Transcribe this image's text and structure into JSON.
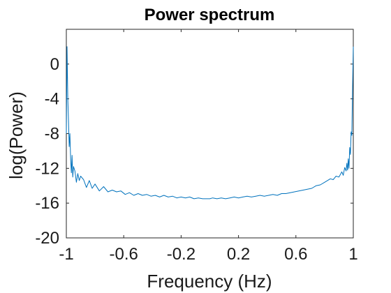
{
  "chart_data": {
    "type": "line",
    "title": "Power spectrum",
    "xlabel": "Frequency (Hz)",
    "ylabel": "log(Power)",
    "xlim": [
      -1,
      1
    ],
    "ylim": [
      -20,
      4
    ],
    "xticks": [
      -1,
      -0.6,
      -0.2,
      0.2,
      0.6,
      1
    ],
    "xtick_labels": [
      "-1",
      "-0.6",
      "-0.2",
      "0.2",
      "0.6",
      "1"
    ],
    "yticks": [
      -20,
      -16,
      -12,
      -8,
      -4,
      0
    ],
    "ytick_labels": [
      "-20",
      "-16",
      "-12",
      "-8",
      "-4",
      "0"
    ],
    "grid": false,
    "line_color": "#0072BD",
    "series": [
      {
        "x": [
          -1.0,
          -0.995,
          -0.99,
          -0.985,
          -0.98,
          -0.975,
          -0.97,
          -0.965,
          -0.96,
          -0.955,
          -0.95,
          -0.94,
          -0.93,
          -0.92,
          -0.91,
          -0.9,
          -0.88,
          -0.86,
          -0.84,
          -0.82,
          -0.8,
          -0.77,
          -0.74,
          -0.71,
          -0.68,
          -0.65,
          -0.62,
          -0.59,
          -0.56,
          -0.53,
          -0.5,
          -0.47,
          -0.44,
          -0.41,
          -0.38,
          -0.35,
          -0.32,
          -0.29,
          -0.26,
          -0.23,
          -0.2,
          -0.17,
          -0.14,
          -0.11,
          -0.08,
          -0.05,
          -0.02,
          0.0,
          0.02,
          0.05,
          0.08,
          0.11,
          0.14,
          0.17,
          0.2,
          0.23,
          0.26,
          0.29,
          0.32,
          0.35,
          0.38,
          0.41,
          0.44,
          0.47,
          0.5,
          0.53,
          0.56,
          0.59,
          0.62,
          0.65,
          0.68,
          0.71,
          0.74,
          0.77,
          0.8,
          0.82,
          0.84,
          0.86,
          0.88,
          0.9,
          0.91,
          0.92,
          0.93,
          0.94,
          0.95,
          0.955,
          0.96,
          0.965,
          0.97,
          0.975,
          0.98,
          0.985,
          0.99,
          0.995,
          1.0
        ],
        "y": [
          -8.0,
          2.0,
          -4.0,
          -6.5,
          -9.5,
          -8.0,
          -11.0,
          -12.5,
          -10.5,
          -13.0,
          -11.8,
          -12.3,
          -13.6,
          -12.6,
          -13.4,
          -12.9,
          -13.3,
          -14.2,
          -13.4,
          -14.3,
          -13.8,
          -14.6,
          -14.1,
          -14.7,
          -14.5,
          -14.7,
          -14.6,
          -15.0,
          -14.8,
          -15.1,
          -14.9,
          -15.1,
          -15.0,
          -15.2,
          -15.1,
          -15.3,
          -15.1,
          -15.3,
          -15.2,
          -15.4,
          -15.3,
          -15.4,
          -15.3,
          -15.5,
          -15.4,
          -15.5,
          -15.5,
          -15.5,
          -15.4,
          -15.5,
          -15.4,
          -15.5,
          -15.4,
          -15.3,
          -15.4,
          -15.3,
          -15.2,
          -15.3,
          -15.2,
          -15.1,
          -15.2,
          -15.1,
          -15.0,
          -15.1,
          -14.9,
          -14.9,
          -14.8,
          -14.7,
          -14.6,
          -14.5,
          -14.4,
          -14.3,
          -14.0,
          -13.9,
          -13.6,
          -13.4,
          -13.2,
          -13.3,
          -12.9,
          -13.0,
          -12.7,
          -12.4,
          -12.8,
          -11.9,
          -12.3,
          -11.4,
          -12.2,
          -10.9,
          -12.0,
          -9.6,
          -10.4,
          -7.8,
          -8.2,
          -2.5,
          2.0
        ]
      }
    ]
  }
}
